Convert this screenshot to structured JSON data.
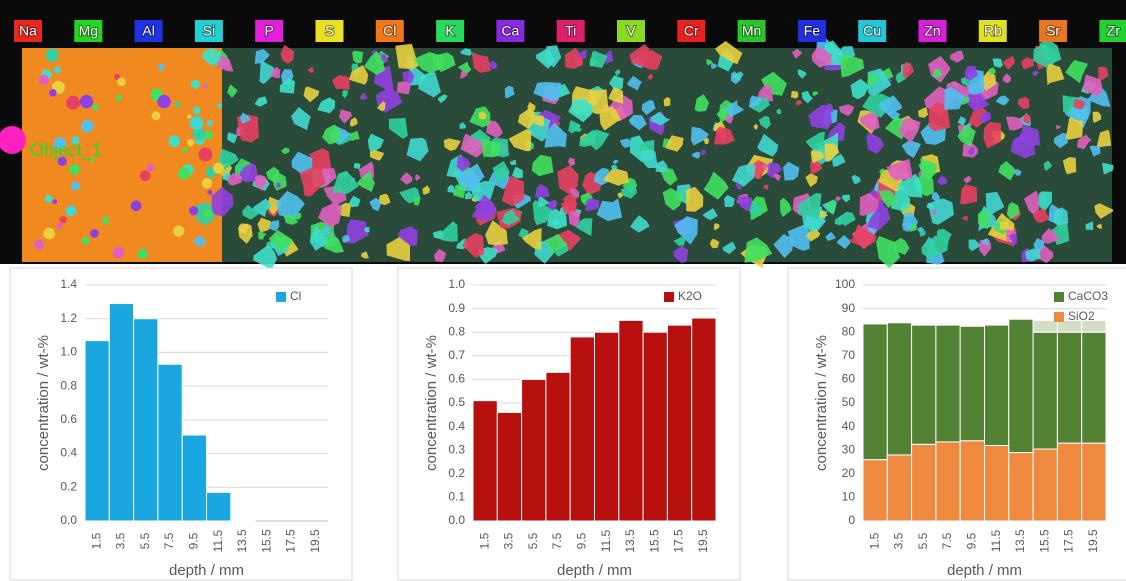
{
  "header": {
    "elements": [
      {
        "name": "Na",
        "color": "#e8281e"
      },
      {
        "name": "Mg",
        "color": "#22d622"
      },
      {
        "name": "Al",
        "color": "#1e32e6"
      },
      {
        "name": "Si",
        "color": "#22d0d8"
      },
      {
        "name": "P",
        "color": "#e020d8"
      },
      {
        "name": "S",
        "color": "#e8e020"
      },
      {
        "name": "Cl",
        "color": "#f07818"
      },
      {
        "name": "K",
        "color": "#2ad860"
      },
      {
        "name": "Ca",
        "color": "#8a2ae0"
      },
      {
        "name": "Ti",
        "color": "#e0206a"
      },
      {
        "name": "V",
        "color": "#8ad822"
      },
      {
        "name": "Cr",
        "color": "#e8221e"
      },
      {
        "name": "Mn",
        "color": "#28c828"
      },
      {
        "name": "Fe",
        "color": "#2030e0"
      },
      {
        "name": "Cu",
        "color": "#22c8d8"
      },
      {
        "name": "Zn",
        "color": "#d820d8"
      },
      {
        "name": "Rb",
        "color": "#e0e020"
      },
      {
        "name": "Sr",
        "color": "#e87820"
      },
      {
        "name": "Zr",
        "color": "#22d030"
      }
    ]
  },
  "image": {
    "label": "Object_1"
  },
  "chart_data": [
    {
      "type": "bar",
      "categories": [
        "1.5",
        "3.5",
        "5.5",
        "7.5",
        "9.5",
        "11.5",
        "13.5",
        "15.5",
        "17.5",
        "19.5"
      ],
      "series": [
        {
          "name": "Cl",
          "color": "#1aa7e0",
          "values": [
            1.07,
            1.29,
            1.2,
            0.93,
            0.51,
            0.17,
            0.005,
            0,
            0,
            0
          ]
        }
      ],
      "ylim": [
        0,
        1.4
      ],
      "yticks": [
        {
          "value": 0,
          "label": "0.0"
        },
        0.2,
        0.4,
        0.6,
        0.8,
        {
          "value": 1,
          "label": "1.0"
        },
        1.2,
        1.4
      ],
      "x_label": "depth / mm",
      "y_label": "concentration / wt-%",
      "grid": true,
      "legend": "top-right"
    },
    {
      "type": "bar",
      "categories": [
        "1.5",
        "3.5",
        "5.5",
        "7.5",
        "9.5",
        "11.5",
        "13.5",
        "15.5",
        "17.5",
        "19.5"
      ],
      "series": [
        {
          "name": "K2O",
          "color": "#b80f0f",
          "values": [
            0.51,
            0.46,
            0.6,
            0.63,
            0.78,
            0.8,
            0.85,
            0.8,
            0.83,
            0.86
          ]
        }
      ],
      "ylim": [
        0,
        1
      ],
      "yticks": [
        {
          "value": 0,
          "label": "0.0"
        },
        0.1,
        0.2,
        0.3,
        0.4,
        0.5,
        0.6,
        0.7,
        0.8,
        0.9,
        {
          "value": 1,
          "label": "1.0"
        }
      ],
      "x_label": "depth / mm",
      "y_label": "concentration / wt-%",
      "grid": true,
      "legend": "top-right"
    },
    {
      "type": "stacked_bar",
      "categories": [
        "1.5",
        "3.5",
        "5.5",
        "7.5",
        "9.5",
        "11.5",
        "13.5",
        "15.5",
        "17.5",
        "19.5"
      ],
      "series": [
        {
          "name": "SiO2",
          "color": "#ee8a40",
          "values": [
            26,
            28,
            32.5,
            33.5,
            34,
            32,
            29,
            30.5,
            33,
            33
          ]
        },
        {
          "name": "CaCO3",
          "color": "#548235",
          "values": [
            57.5,
            56,
            50.5,
            49.5,
            48.5,
            51,
            56.5,
            49.5,
            47,
            47
          ]
        },
        {
          "color": "#d3ddc8",
          "values": [
            0,
            0,
            0,
            0,
            0,
            0,
            0,
            5,
            5,
            5
          ]
        }
      ],
      "ylim": [
        0,
        100
      ],
      "yticks": [
        0,
        10,
        20,
        30,
        40,
        50,
        60,
        70,
        80,
        90,
        100
      ],
      "x_label": "depth / mm",
      "y_label": "concentration / wt-%",
      "grid": true,
      "legend": "top-right"
    }
  ]
}
